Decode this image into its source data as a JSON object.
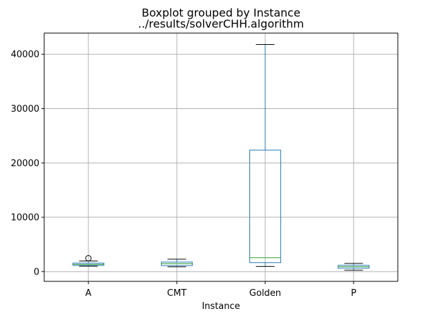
{
  "chart_data": {
    "type": "box",
    "title": "Boxplot grouped by Instance",
    "subtitle": "../results/solverCHH.algorithm",
    "xlabel": "Instance",
    "ylabel": "",
    "categories": [
      "A",
      "CMT",
      "Golden",
      "P"
    ],
    "ylim": [
      -1800,
      43900
    ],
    "yticks": [
      0,
      10000,
      20000,
      30000,
      40000
    ],
    "ytick_labels": [
      "0",
      "10000",
      "20000",
      "30000",
      "40000"
    ],
    "grid": true,
    "boxes": [
      {
        "category": "A",
        "whisker_low": 1000,
        "q1": 1130,
        "median": 1320,
        "q3": 1560,
        "whisker_high": 1950,
        "outliers": [
          2450
        ]
      },
      {
        "category": "CMT",
        "whisker_low": 880,
        "q1": 1100,
        "median": 1450,
        "q3": 1750,
        "whisker_high": 2280,
        "outliers": []
      },
      {
        "category": "Golden",
        "whisker_low": 950,
        "q1": 1650,
        "median": 2550,
        "q3": 22350,
        "whisker_high": 41800,
        "outliers": []
      },
      {
        "category": "P",
        "whisker_low": 250,
        "q1": 620,
        "median": 900,
        "q3": 1150,
        "whisker_high": 1500,
        "outliers": []
      }
    ],
    "colors": {
      "box": "#1f77b4",
      "median": "#2ca02c",
      "whisker": "#1f77b4",
      "cap": "#000000",
      "outlier": "#000000",
      "grid": "#b0b0b0"
    }
  }
}
